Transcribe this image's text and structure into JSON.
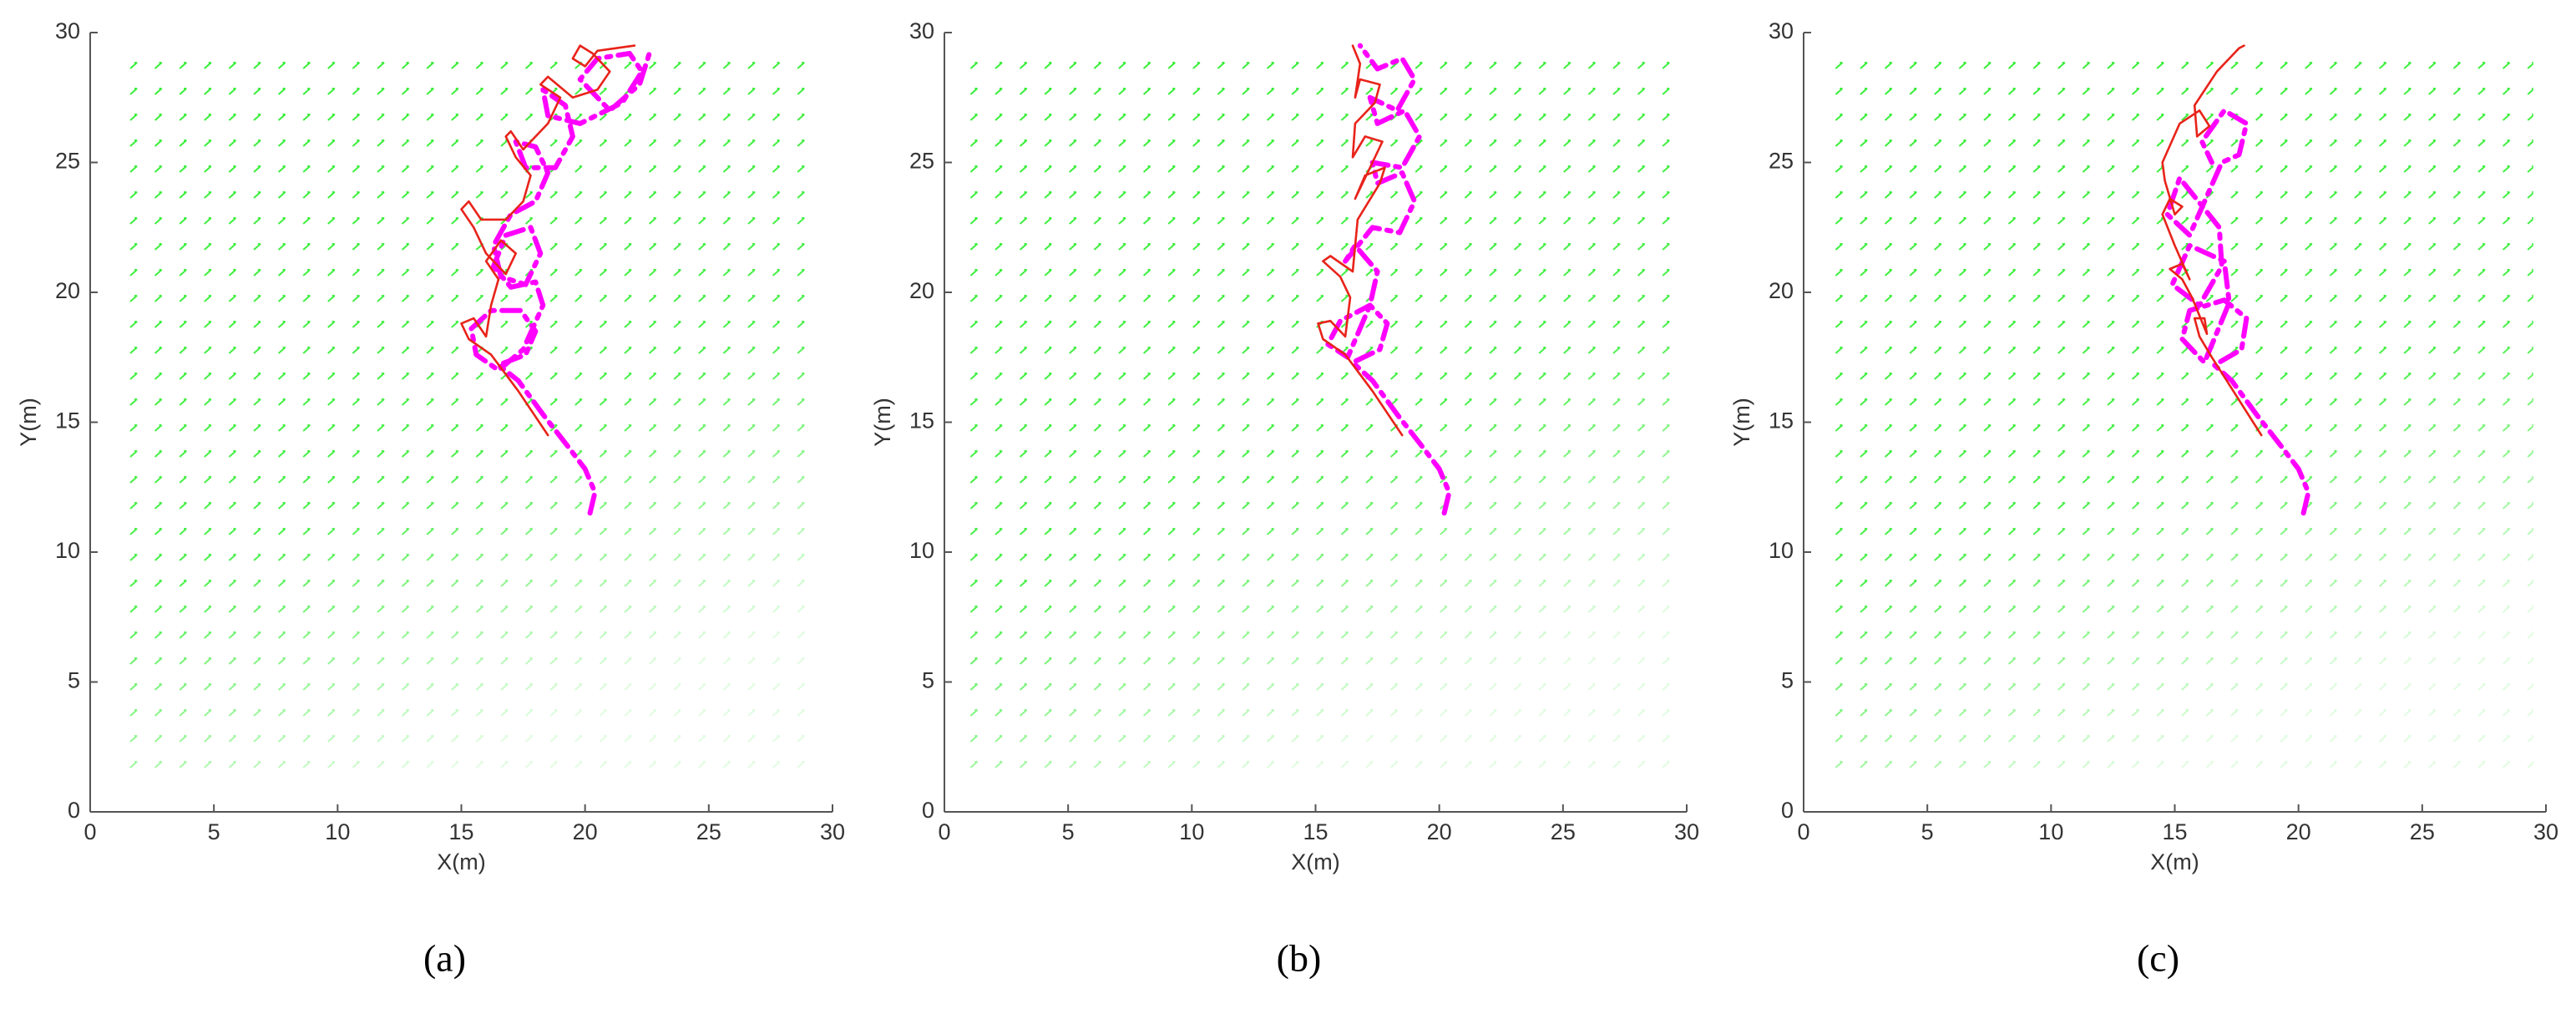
{
  "chart_data": [
    {
      "type": "line",
      "label": "(a)",
      "xlabel": "X(m)",
      "ylabel": "Y(m)",
      "xlim": [
        0,
        30
      ],
      "ylim": [
        0,
        30
      ],
      "xticks": [
        0,
        5,
        10,
        15,
        20,
        25,
        30
      ],
      "yticks": [
        0,
        5,
        10,
        15,
        20,
        25,
        30
      ],
      "grid": false,
      "series": [
        {
          "color": "#ff00ff",
          "line_style": "dashdot",
          "x": [
            20.2,
            20.4,
            20.0,
            19.2,
            18.3,
            17.3,
            16.5,
            17.6,
            18.0,
            17.4,
            16.2,
            15.4,
            15.6,
            16.5,
            17.5,
            18.3,
            18.0,
            17.0,
            16.3,
            16.8,
            17.8,
            18.2,
            17.6,
            16.6,
            16.3,
            17.0,
            18.0,
            18.5,
            18.0,
            17.2,
            17.6,
            18.8,
            19.5,
            19.2,
            18.3,
            18.5,
            19.8,
            21.5,
            22.3,
            21.8,
            20.5,
            19.8,
            21.0,
            22.2,
            22.6
          ],
          "y": [
            11.5,
            12.3,
            13.2,
            14.2,
            15.3,
            16.6,
            17.2,
            17.6,
            18.5,
            19.3,
            19.3,
            18.6,
            17.6,
            17.0,
            17.8,
            19.5,
            20.4,
            20.2,
            21.0,
            22.2,
            22.5,
            21.5,
            20.3,
            20.6,
            21.8,
            23.0,
            23.5,
            24.6,
            25.6,
            25.8,
            24.8,
            24.8,
            26.0,
            27.2,
            27.8,
            26.8,
            26.5,
            27.3,
            28.5,
            29.2,
            29.0,
            28.2,
            27.0,
            28.0,
            29.2
          ]
        },
        {
          "color": "#e8231a",
          "line_style": "solid",
          "x": [
            18.5,
            17.3,
            16.2,
            15.3,
            15.0,
            15.5,
            16.0,
            16.2,
            16.5,
            16.0,
            16.6,
            17.2,
            16.8,
            16.0,
            15.5,
            15.0,
            15.3,
            15.8,
            16.8,
            17.5,
            17.8,
            17.2,
            16.8,
            17.0,
            17.5,
            18.5,
            19.0,
            18.2,
            18.5,
            19.5,
            20.5,
            21.0,
            20.3,
            19.8,
            19.5,
            20.0,
            20.5,
            22.0
          ],
          "y": [
            14.5,
            16.2,
            17.6,
            18.2,
            18.8,
            19.0,
            18.3,
            19.5,
            20.5,
            21.2,
            22.0,
            21.5,
            20.7,
            21.5,
            22.5,
            23.2,
            23.5,
            22.8,
            22.8,
            23.5,
            24.5,
            25.2,
            26.0,
            26.2,
            25.5,
            26.5,
            27.5,
            28.0,
            28.3,
            27.5,
            27.8,
            28.5,
            29.2,
            29.5,
            29.0,
            28.7,
            29.3,
            29.5
          ]
        }
      ]
    },
    {
      "type": "line",
      "label": "(b)",
      "xlabel": "X(m)",
      "ylabel": "Y(m)",
      "xlim": [
        0,
        30
      ],
      "ylim": [
        0,
        30
      ],
      "xticks": [
        0,
        5,
        10,
        15,
        20,
        25,
        30
      ],
      "yticks": [
        0,
        5,
        10,
        15,
        20,
        25,
        30
      ],
      "grid": false,
      "series": [
        {
          "color": "#ff00ff",
          "line_style": "dashdot",
          "x": [
            20.2,
            20.4,
            20.0,
            19.2,
            18.3,
            17.3,
            16.5,
            17.6,
            17.9,
            17.2,
            16.0,
            15.5,
            16.3,
            17.2,
            17.5,
            16.6,
            16.2,
            17.3,
            18.4,
            19.0,
            18.5,
            17.5,
            17.3,
            18.5,
            19.2,
            18.6,
            17.5,
            17.2,
            18.3,
            19.0,
            18.5,
            17.5,
            16.8
          ],
          "y": [
            11.5,
            12.3,
            13.2,
            14.2,
            15.3,
            16.6,
            17.3,
            17.8,
            18.8,
            19.5,
            18.9,
            18.0,
            17.5,
            19.5,
            20.8,
            21.8,
            21.2,
            22.5,
            22.3,
            23.5,
            24.6,
            24.2,
            25.0,
            24.8,
            26.0,
            27.0,
            26.5,
            27.5,
            27.0,
            28.2,
            29.0,
            28.6,
            29.5
          ]
        },
        {
          "color": "#e8231a",
          "line_style": "solid",
          "x": [
            18.5,
            17.3,
            16.2,
            15.3,
            15.1,
            15.6,
            16.2,
            16.4,
            16.0,
            15.3,
            15.6,
            16.5,
            16.7,
            17.6,
            17.8,
            17.0,
            16.6,
            17.3,
            17.7,
            17.0,
            16.5,
            16.6,
            17.4,
            17.6,
            16.8,
            16.6,
            16.8,
            16.5
          ],
          "y": [
            14.5,
            16.2,
            17.6,
            18.2,
            18.8,
            18.9,
            18.3,
            19.8,
            20.6,
            21.2,
            21.4,
            20.8,
            22.8,
            24.2,
            24.8,
            24.5,
            23.6,
            25.0,
            25.8,
            26.0,
            25.2,
            26.5,
            27.3,
            28.0,
            28.2,
            27.5,
            28.8,
            29.5
          ]
        }
      ]
    },
    {
      "type": "line",
      "label": "(c)",
      "xlabel": "X(m)",
      "ylabel": "Y(m)",
      "xlim": [
        0,
        30
      ],
      "ylim": [
        0,
        30
      ],
      "xticks": [
        0,
        5,
        10,
        15,
        20,
        25,
        30
      ],
      "yticks": [
        0,
        5,
        10,
        15,
        20,
        25,
        30
      ],
      "grid": false,
      "series": [
        {
          "color": "#ff00ff",
          "line_style": "dashdot",
          "x": [
            20.2,
            20.4,
            20.0,
            19.2,
            18.3,
            17.3,
            16.6,
            17.7,
            17.9,
            17.0,
            15.6,
            15.3,
            16.2,
            17.2,
            17.0,
            15.6,
            14.9,
            16.0,
            16.9,
            16.8,
            15.2,
            14.7,
            15.6,
            16.9,
            17.6,
            17.9,
            17.0,
            16.1,
            16.5
          ],
          "y": [
            11.5,
            12.3,
            13.2,
            14.2,
            15.3,
            16.6,
            17.2,
            17.8,
            19.0,
            19.7,
            19.3,
            18.2,
            17.3,
            19.6,
            21.2,
            21.8,
            20.3,
            19.5,
            21.0,
            22.5,
            24.4,
            23.0,
            22.2,
            25.0,
            25.3,
            26.5,
            27.0,
            25.8,
            25.0
          ]
        },
        {
          "color": "#e8231a",
          "line_style": "solid",
          "x": [
            18.5,
            17.5,
            16.5,
            16.0,
            15.8,
            16.2,
            16.3,
            15.7,
            15.3,
            14.8,
            15.3,
            15.6,
            15.0,
            14.5,
            14.8,
            15.3,
            15.0,
            14.6,
            14.5,
            15.2,
            16.0,
            16.4,
            15.9,
            15.8,
            16.7,
            17.6,
            17.8
          ],
          "y": [
            14.5,
            16.0,
            17.5,
            18.3,
            19.0,
            19.0,
            18.4,
            19.8,
            20.5,
            20.9,
            21.1,
            20.5,
            21.8,
            23.0,
            23.6,
            23.3,
            23.0,
            24.3,
            25.0,
            26.5,
            27.0,
            26.4,
            26.0,
            27.2,
            28.5,
            29.4,
            29.5
          ]
        }
      ]
    }
  ]
}
